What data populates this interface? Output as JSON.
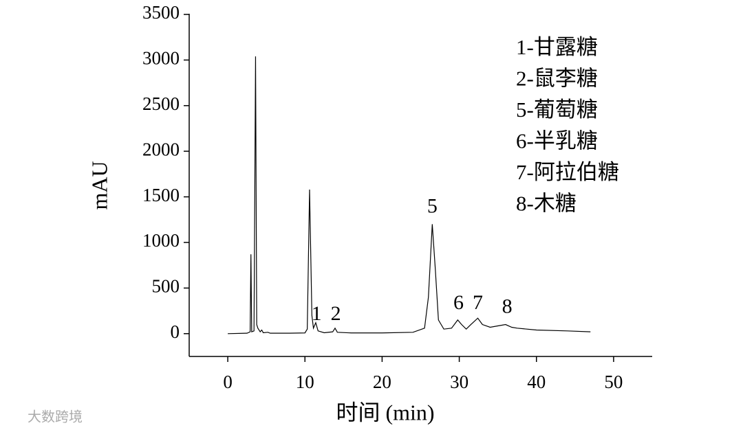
{
  "chart_data": {
    "type": "line",
    "xlabel": "时间 (min)",
    "ylabel": "mAU",
    "xlim": [
      -5,
      55
    ],
    "xticks": [
      0,
      10,
      20,
      30,
      40,
      50
    ],
    "ylim": [
      -250,
      3500
    ],
    "yticks": [
      0,
      500,
      1000,
      1500,
      2000,
      2500,
      3000,
      3500
    ],
    "series": [
      {
        "color": "#000000",
        "x": [
          0,
          2.5,
          2.9,
          3.0,
          3.1,
          3.4,
          3.6,
          3.75,
          3.9,
          4.2,
          4.4,
          4.6,
          5.2,
          5.5,
          8,
          10,
          10.3,
          10.6,
          10.9,
          11.1,
          11.4,
          11.7,
          12.5,
          13.6,
          13.9,
          14.2,
          16,
          20,
          24,
          25.5,
          26,
          26.5,
          26.9,
          27.3,
          28,
          29,
          29.8,
          30.3,
          30.9,
          31.5,
          32.4,
          33,
          34,
          35,
          36,
          36.8,
          37.5,
          40,
          44,
          47
        ],
        "values": [
          0,
          5,
          20,
          870,
          20,
          30,
          3040,
          100,
          60,
          20,
          40,
          10,
          15,
          5,
          5,
          8,
          50,
          1580,
          200,
          60,
          120,
          30,
          10,
          20,
          60,
          15,
          8,
          8,
          15,
          60,
          400,
          1200,
          700,
          150,
          50,
          60,
          150,
          100,
          50,
          100,
          170,
          100,
          70,
          85,
          100,
          70,
          60,
          40,
          30,
          20
        ]
      }
    ],
    "annotations": [
      {
        "text": "1",
        "x": 11.5,
        "y": 200
      },
      {
        "text": "2",
        "x": 14,
        "y": 200
      },
      {
        "text": "5",
        "x": 26.5,
        "y": 1380
      },
      {
        "text": "6",
        "x": 29.9,
        "y": 320
      },
      {
        "text": "7",
        "x": 32.4,
        "y": 320
      },
      {
        "text": "8",
        "x": 36.2,
        "y": 280
      }
    ],
    "legend_text": [
      "1-甘露糖",
      "2-鼠李糖",
      "5-葡萄糖",
      "6-半乳糖",
      "7-阿拉伯糖",
      "8-木糖"
    ],
    "watermark": "大数跨境"
  }
}
